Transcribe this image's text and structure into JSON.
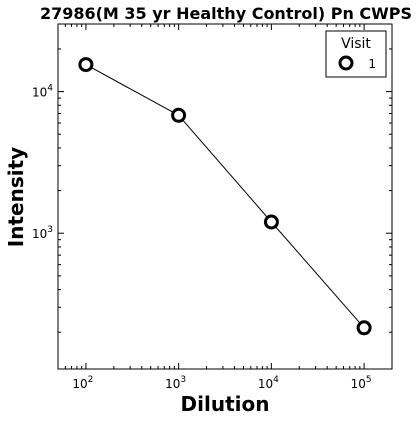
{
  "chart_data": {
    "type": "line",
    "title": "27986(M 35 yr Healthy Control) Pn CWPS",
    "xlabel": "Dilution",
    "ylabel": "Intensity",
    "xscale": "log",
    "yscale": "log",
    "xlim": [
      50,
      200000
    ],
    "ylim": [
      110,
      30000
    ],
    "x_ticks": [
      {
        "base": "10",
        "exp": "2",
        "value": 100
      },
      {
        "base": "10",
        "exp": "3",
        "value": 1000
      },
      {
        "base": "10",
        "exp": "4",
        "value": 10000
      },
      {
        "base": "10",
        "exp": "5",
        "value": 100000
      }
    ],
    "y_ticks": [
      {
        "base": "10",
        "exp": "3",
        "value": 1000
      },
      {
        "base": "10",
        "exp": "4",
        "value": 10000
      }
    ],
    "grid": false,
    "legend": {
      "title": "Visit",
      "position": "top-right"
    },
    "series": [
      {
        "name": "1",
        "marker": "open-circle",
        "line_color": "#000000",
        "x": [
          100,
          1000,
          10000,
          100000
        ],
        "y": [
          15500,
          6800,
          1200,
          215
        ]
      }
    ]
  }
}
